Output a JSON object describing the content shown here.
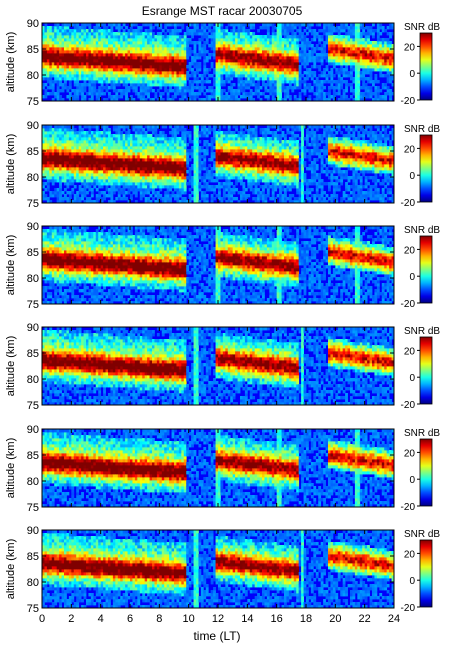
{
  "chart_data": {
    "type": "heatmap",
    "title": "Esrange MST racar 20030705",
    "xlabel": "time (LT)",
    "xlim": [
      0,
      24
    ],
    "xticks": [
      0,
      2,
      4,
      6,
      8,
      10,
      12,
      14,
      16,
      18,
      20,
      22,
      24
    ],
    "colorbar": {
      "label": "SNR dB",
      "range": [
        -20,
        30
      ],
      "ticks": [
        20,
        0,
        -20
      ],
      "colormap": "jet"
    },
    "panels": [
      {
        "ylabel": "altitude (km)",
        "ylim": [
          75,
          90
        ],
        "yticks": [
          90,
          85,
          80,
          75
        ],
        "colorbar_label": "SNR dB"
      },
      {
        "ylabel": "altitude (km)",
        "ylim": [
          75,
          90
        ],
        "yticks": [
          90,
          85,
          80,
          75
        ],
        "colorbar_label": "SNR dB"
      },
      {
        "ylabel": "altitude (km)",
        "ylim": [
          75,
          90
        ],
        "yticks": [
          90,
          85,
          80,
          75
        ],
        "colorbar_label": "SNR dB"
      },
      {
        "ylabel": "altitude (km)",
        "ylim": [
          75,
          90
        ],
        "yticks": [
          90,
          85,
          80,
          75
        ],
        "colorbar_label": "SNR dB"
      },
      {
        "ylabel": "altitude (km)",
        "ylim": [
          75,
          90
        ],
        "yticks": [
          90,
          85,
          80,
          75
        ],
        "colorbar_label": "SNR dB"
      },
      {
        "ylabel": "altitude (km)",
        "ylim": [
          75,
          90
        ],
        "yticks": [
          90,
          85,
          80,
          75
        ],
        "colorbar_label": "SNR dB"
      }
    ],
    "echo_regions": [
      {
        "t_start": 0.0,
        "t_end": 9.8,
        "alt_low": 80.5,
        "alt_high": 88.5,
        "peak_snr": 28,
        "peak_alt": 83.5
      },
      {
        "t_start": 11.8,
        "t_end": 17.5,
        "alt_low": 81.0,
        "alt_high": 88.0,
        "peak_snr": 24,
        "peak_alt": 84.0
      },
      {
        "t_start": 19.5,
        "t_end": 24.0,
        "alt_low": 83.0,
        "alt_high": 87.5,
        "peak_snr": 18,
        "peak_alt": 85.0
      }
    ]
  }
}
